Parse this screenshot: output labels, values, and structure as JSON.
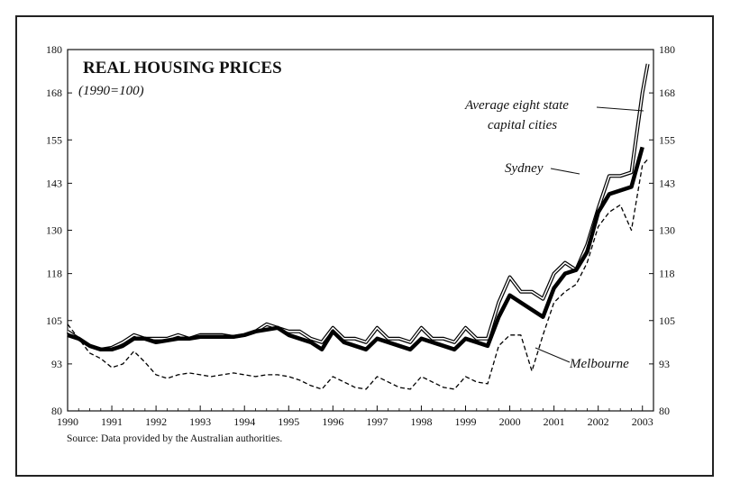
{
  "chart_data": {
    "type": "line",
    "title": "REAL HOUSING PRICES",
    "subtitle": "(1990=100)",
    "source": "Source: Data provided by the Australian authorities.",
    "xlim": [
      1990,
      2003.25
    ],
    "ylim": [
      80,
      180
    ],
    "x_ticks": [
      "1990",
      "1991",
      "1992",
      "1993",
      "1994",
      "1995",
      "1996",
      "1997",
      "1998",
      "1999",
      "2000",
      "2001",
      "2002",
      "2003"
    ],
    "y_ticks": [
      "80",
      "93",
      "105",
      "118",
      "130",
      "143",
      "155",
      "168",
      "180"
    ],
    "grid": false,
    "series": [
      {
        "name": "Average eight state capital cities",
        "style": "thick",
        "color": "#000000",
        "x": [
          1990,
          1990.25,
          1990.5,
          1990.75,
          1991,
          1991.25,
          1991.5,
          1991.75,
          1992,
          1992.25,
          1992.5,
          1992.75,
          1993,
          1993.25,
          1993.5,
          1993.75,
          1994,
          1994.25,
          1994.5,
          1994.75,
          1995,
          1995.25,
          1995.5,
          1995.75,
          1996,
          1996.25,
          1996.5,
          1996.75,
          1997,
          1997.25,
          1997.5,
          1997.75,
          1998,
          1998.25,
          1998.5,
          1998.75,
          1999,
          1999.25,
          1999.5,
          1999.75,
          2000,
          2000.25,
          2000.5,
          2000.75,
          2001,
          2001.25,
          2001.5,
          2001.75,
          2002,
          2002.25,
          2002.5,
          2002.75,
          2003
        ],
        "values": [
          101,
          100,
          98,
          97,
          97,
          98,
          100,
          100,
          99,
          99.5,
          100,
          100,
          100.5,
          100.5,
          100.5,
          100.5,
          101,
          102,
          102.5,
          103,
          101,
          100,
          99,
          97,
          102,
          99,
          98,
          97,
          100,
          99,
          98,
          97,
          100,
          99,
          98,
          97,
          100,
          99,
          98,
          106,
          112,
          110,
          108,
          106,
          114,
          118,
          119,
          124,
          135,
          140,
          141,
          142,
          153
        ]
      },
      {
        "name": "Sydney",
        "style": "double",
        "color": "#000000",
        "x": [
          1990,
          1990.25,
          1990.5,
          1990.75,
          1991,
          1991.25,
          1991.5,
          1991.75,
          1992,
          1992.25,
          1992.5,
          1992.75,
          1993,
          1993.25,
          1993.5,
          1993.75,
          1994,
          1994.25,
          1994.5,
          1994.75,
          1995,
          1995.25,
          1995.5,
          1995.75,
          1996,
          1996.25,
          1996.5,
          1996.75,
          1997,
          1997.25,
          1997.5,
          1997.75,
          1998,
          1998.25,
          1998.5,
          1998.75,
          1999,
          1999.25,
          1999.5,
          1999.75,
          2000,
          2000.25,
          2000.5,
          2000.75,
          2001,
          2001.25,
          2001.5,
          2001.75,
          2002,
          2002.25,
          2002.5,
          2002.75,
          2003,
          2003.12
        ],
        "values": [
          102,
          100,
          98,
          97,
          97.5,
          99,
          101,
          100,
          100,
          100,
          101,
          100,
          101,
          101,
          101,
          100.5,
          101,
          102,
          104,
          103,
          102,
          102,
          100,
          99,
          103,
          100,
          100,
          99,
          103,
          100,
          100,
          99,
          103,
          100,
          100,
          99,
          103,
          100,
          100,
          110,
          117,
          113,
          113,
          111,
          118,
          121,
          119,
          126,
          136,
          145,
          145,
          146,
          168,
          176
        ]
      },
      {
        "name": "Melbourne",
        "style": "dashed",
        "color": "#000000",
        "x": [
          1990,
          1990.25,
          1990.5,
          1990.75,
          1991,
          1991.25,
          1991.5,
          1991.75,
          1992,
          1992.25,
          1992.5,
          1992.75,
          1993,
          1993.25,
          1993.5,
          1993.75,
          1994,
          1994.25,
          1994.5,
          1994.75,
          1995,
          1995.25,
          1995.5,
          1995.75,
          1996,
          1996.25,
          1996.5,
          1996.75,
          1997,
          1997.25,
          1997.5,
          1997.75,
          1998,
          1998.25,
          1998.5,
          1998.75,
          1999,
          1999.25,
          1999.5,
          1999.75,
          2000,
          2000.25,
          2000.5,
          2000.75,
          2001,
          2001.25,
          2001.5,
          2001.75,
          2002,
          2002.25,
          2002.5,
          2002.75,
          2003,
          2003.15
        ],
        "values": [
          104,
          100,
          96,
          94.5,
          92,
          93,
          96.5,
          93.5,
          90,
          89,
          90,
          90.5,
          90,
          89.5,
          90,
          90.5,
          90,
          89.5,
          90,
          90,
          89.5,
          88.5,
          87,
          86,
          89.5,
          88,
          86.5,
          86,
          89.5,
          88,
          86.5,
          86,
          89.5,
          88,
          86.5,
          86,
          89.5,
          88,
          87.5,
          98,
          101,
          101,
          91,
          101,
          110,
          113,
          115,
          121,
          131,
          135,
          137,
          130,
          148,
          150
        ]
      }
    ],
    "annotations": {
      "average_line1": "Average eight state",
      "average_line2": "capital cities",
      "sydney": "Sydney",
      "melbourne": "Melbourne"
    }
  }
}
